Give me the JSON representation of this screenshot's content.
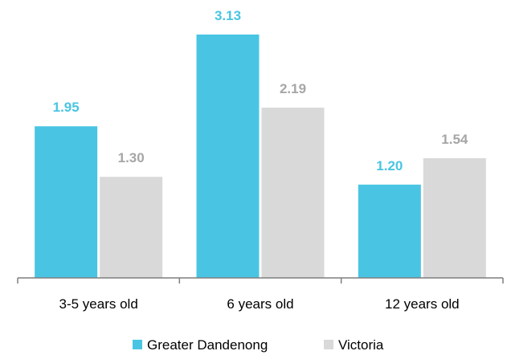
{
  "chart_data": {
    "type": "bar",
    "categories": [
      "3-5 years old",
      "6 years old",
      "12 years old"
    ],
    "series": [
      {
        "name": "Greater Dandenong",
        "values": [
          1.95,
          3.13,
          1.2
        ],
        "labels": [
          "1.95",
          "3.13",
          "1.20"
        ],
        "color": "#49C5E3"
      },
      {
        "name": "Victoria",
        "values": [
          1.3,
          2.19,
          1.54
        ],
        "labels": [
          "1.30",
          "2.19",
          "1.54"
        ],
        "color": "#D9D9D9"
      }
    ],
    "value_label_colors": [
      "#49C5E3",
      "#A6A6A6"
    ],
    "ylim": [
      0,
      3.5
    ],
    "grid": false,
    "legend_position": "bottom",
    "title": "",
    "xlabel": "",
    "ylabel": ""
  }
}
